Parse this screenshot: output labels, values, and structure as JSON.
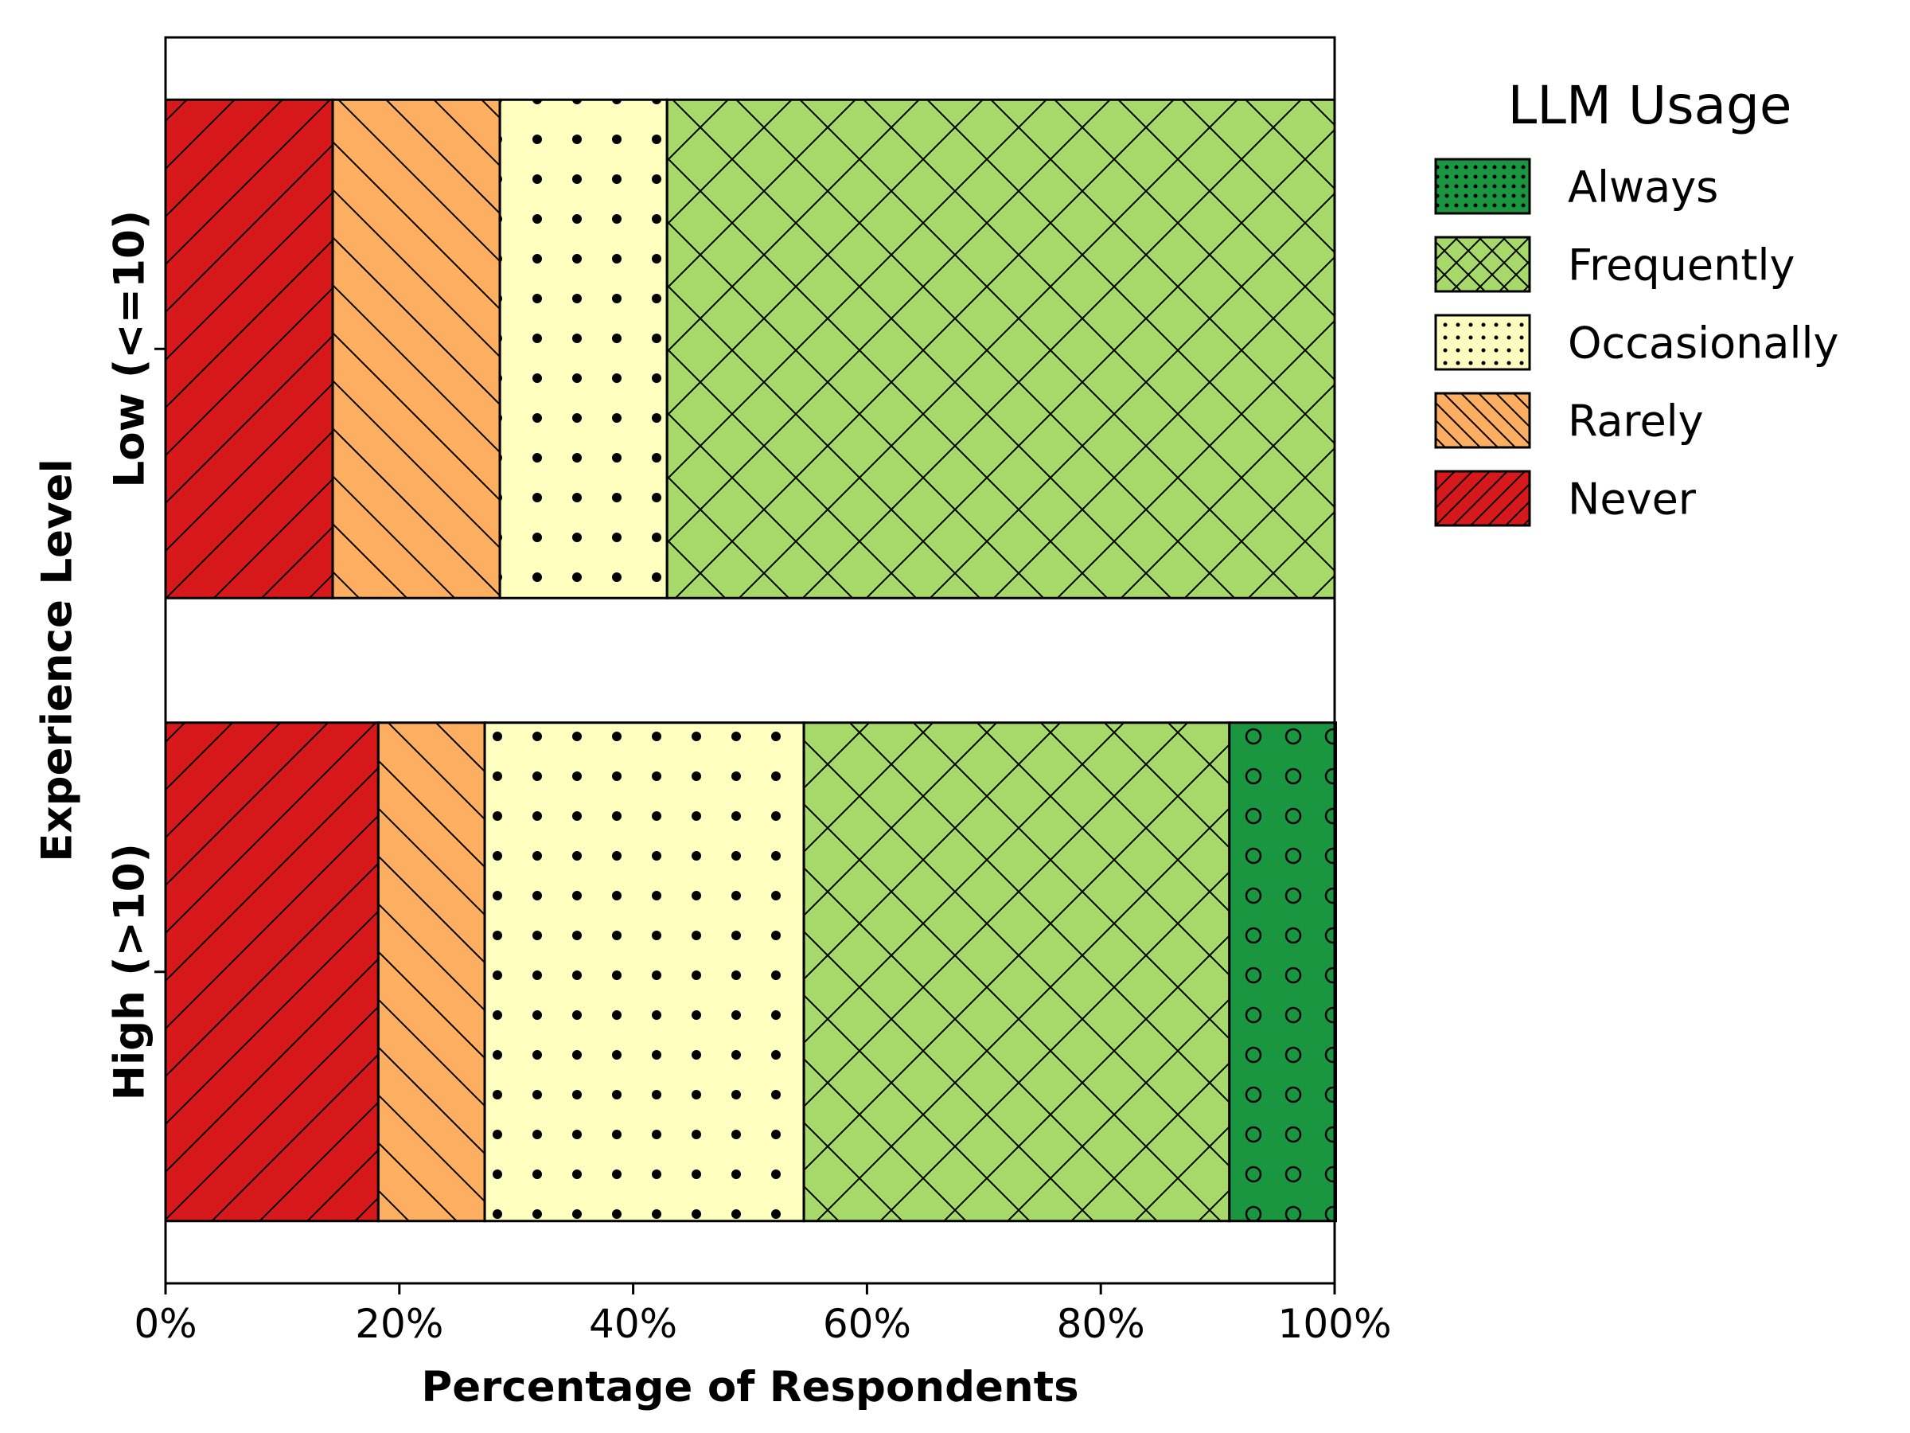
{
  "chart_data": {
    "type": "bar",
    "orientation": "horizontal",
    "stacked": true,
    "xlabel": "Percentage of Respondents",
    "ylabel": "Experience Level",
    "xlim": [
      0,
      100
    ],
    "x_ticks": [
      "0%",
      "20%",
      "40%",
      "60%",
      "80%",
      "100%"
    ],
    "categories": [
      "Low (<=10)",
      "High (>10)"
    ],
    "series": [
      {
        "name": "Never",
        "color": "#d7191c",
        "pattern": "diagonal-forward",
        "values": [
          14.3,
          18.2
        ]
      },
      {
        "name": "Rarely",
        "color": "#fdae61",
        "pattern": "diagonal-back",
        "values": [
          14.3,
          9.1
        ]
      },
      {
        "name": "Occasionally",
        "color": "#ffffbf",
        "pattern": "dots",
        "values": [
          14.3,
          27.3
        ]
      },
      {
        "name": "Frequently",
        "color": "#a6d96a",
        "pattern": "crosshatch",
        "values": [
          57.1,
          36.4
        ]
      },
      {
        "name": "Always",
        "color": "#1a9641",
        "pattern": "circles",
        "values": [
          0,
          9.1
        ]
      }
    ],
    "legend": {
      "title": "LLM Usage",
      "placement": "outside-right",
      "order": [
        "Always",
        "Frequently",
        "Occasionally",
        "Rarely",
        "Never"
      ]
    },
    "grid": false
  }
}
